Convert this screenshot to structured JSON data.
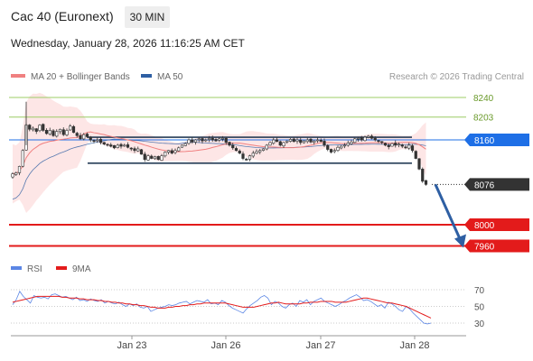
{
  "header": {
    "instrument": "Cac 40 (Euronext)",
    "timeframe": "30 MIN",
    "datetime": "Wednesday, January 28, 2026 11:16:25 AM CET"
  },
  "legend": {
    "ma20_label": "MA 20 + Bollinger Bands",
    "ma50_label": "MA 50",
    "credit": "Research © 2026 Trading Central",
    "rsi_label": "RSI",
    "rsi_ma_label": "9MA"
  },
  "colors": {
    "ma20": "#f08080",
    "ma50": "#2e5fa3",
    "resistance": "#9ccc65",
    "pivot": "#1e6fe6",
    "support": "#e31b1b",
    "last": "#333333",
    "arrow": "#2e5fa3",
    "rsi": "#5b86e5",
    "rsi_ma": "#e31b1b"
  },
  "chart_data": [
    {
      "type": "candlestick",
      "title": "Cac 40 (Euronext)",
      "timeframe": "30 MIN",
      "ylim": [
        7950,
        8260
      ],
      "x_ticks": [
        "Jan 23",
        "Jan 26",
        "Jan 27",
        "Jan 28"
      ],
      "levels": [
        {
          "label": "8240",
          "value": 8240,
          "kind": "resistance"
        },
        {
          "label": "8203",
          "value": 8203,
          "kind": "resistance"
        },
        {
          "label": "8160",
          "value": 8160,
          "kind": "pivot"
        },
        {
          "label": "8076",
          "value": 8076,
          "kind": "last"
        },
        {
          "label": "8000",
          "value": 8000,
          "kind": "support"
        },
        {
          "label": "7960",
          "value": 7960,
          "kind": "support"
        }
      ],
      "channel": {
        "upper": 8165,
        "lower": 8116
      },
      "forecast": {
        "from": 8076,
        "to": 7960
      },
      "close": [
        8096,
        8098,
        8110,
        8140,
        8188,
        8180,
        8182,
        8176,
        8188,
        8178,
        8172,
        8178,
        8168,
        8176,
        8180,
        8170,
        8178,
        8186,
        8174,
        8168,
        8162,
        8170,
        8166,
        8160,
        8158,
        8160,
        8155,
        8152,
        8150,
        8148,
        8145,
        8150,
        8148,
        8150,
        8146,
        8143,
        8140,
        8143,
        8133,
        8123,
        8130,
        8125,
        8128,
        8123,
        8130,
        8137,
        8140,
        8135,
        8140,
        8145,
        8150,
        8153,
        8160,
        8156,
        8160,
        8162,
        8158,
        8160,
        8163,
        8160,
        8158,
        8162,
        8163,
        8155,
        8150,
        8145,
        8140,
        8135,
        8125,
        8123,
        8130,
        8135,
        8138,
        8140,
        8143,
        8150,
        8155,
        8160,
        8157,
        8150,
        8155,
        8158,
        8161,
        8157,
        8160,
        8155,
        8158,
        8160,
        8156,
        8158,
        8160,
        8157,
        8150,
        8142,
        8137,
        8140,
        8146,
        8148,
        8150,
        8154,
        8156,
        8162,
        8163,
        8160,
        8165,
        8167,
        8163,
        8160,
        8157,
        8155,
        8150,
        8147,
        8153,
        8150,
        8152,
        8148,
        8145,
        8150,
        8140,
        8125,
        8105,
        8082,
        8076
      ],
      "rsi": {
        "label": "RSI",
        "ma_label": "9MA",
        "ylim": [
          20,
          80
        ],
        "ticks": [
          70,
          50,
          30
        ],
        "values": [
          52,
          58,
          68,
          62,
          58,
          54,
          63,
          61,
          60,
          61,
          59,
          64,
          65,
          63,
          61,
          62,
          60,
          58,
          61,
          57,
          58,
          56,
          59,
          57,
          56,
          58,
          54,
          56,
          54,
          53,
          55,
          52,
          50,
          53,
          51,
          53,
          49,
          48,
          50,
          44,
          46,
          48,
          49,
          50,
          52,
          51,
          52,
          54,
          55,
          56,
          53,
          55,
          57,
          56,
          55,
          58,
          53,
          54,
          52,
          57,
          55,
          51,
          48,
          46,
          44,
          42,
          47,
          51,
          54,
          57,
          61,
          63,
          60,
          52,
          56,
          54,
          50,
          48,
          52,
          54,
          50,
          57,
          55,
          58,
          52,
          56,
          58,
          60,
          56,
          54,
          52,
          50,
          52,
          55,
          57,
          60,
          62,
          64,
          61,
          57,
          58,
          56,
          53,
          50,
          52,
          48,
          55,
          53,
          50,
          46,
          44,
          50,
          47,
          42,
          38,
          34,
          30,
          29,
          30
        ],
        "ma_values": [
          55,
          56,
          57,
          58,
          59,
          60,
          61,
          62,
          62,
          62,
          62,
          62,
          62,
          62,
          61,
          61,
          60,
          60,
          60,
          59,
          59,
          58,
          58,
          58,
          57,
          57,
          56,
          56,
          55,
          55,
          54,
          54,
          53,
          53,
          52,
          52,
          51,
          51,
          50,
          49,
          49,
          48,
          48,
          48,
          49,
          49,
          50,
          50,
          51,
          51,
          52,
          52,
          53,
          53,
          54,
          54,
          54,
          54,
          54,
          54,
          54,
          53,
          52,
          51,
          50,
          49,
          49,
          49,
          49,
          50,
          51,
          52,
          53,
          54,
          54,
          55,
          54,
          53,
          53,
          53,
          53,
          53,
          54,
          54,
          55,
          55,
          55,
          56,
          56,
          56,
          56,
          55,
          55,
          55,
          55,
          56,
          57,
          58,
          59,
          60,
          60,
          59,
          58,
          57,
          56,
          55,
          54,
          54,
          53,
          52,
          51,
          50,
          48,
          46,
          44,
          42,
          40,
          38,
          36
        ]
      }
    }
  ]
}
